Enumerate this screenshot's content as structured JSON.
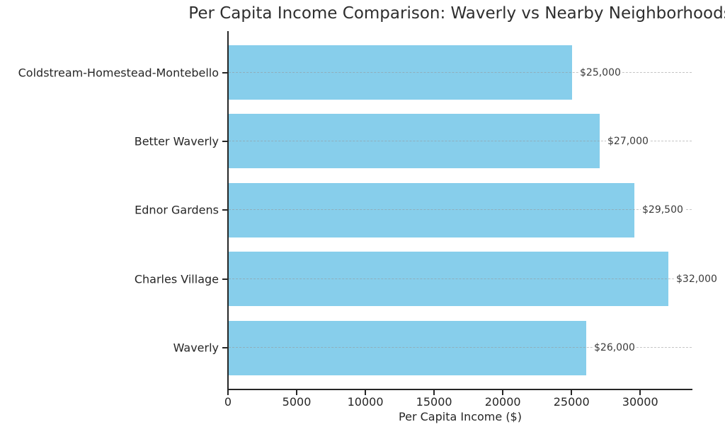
{
  "chart_data": {
    "type": "bar",
    "orientation": "horizontal",
    "title": "Per Capita Income Comparison: Waverly vs Nearby Neighborhoods",
    "xlabel": "Per Capita Income ($)",
    "ylabel": "",
    "categories": [
      "Coldstream-Homestead-Montebello",
      "Better Waverly",
      "Ednor Gardens",
      "Charles Village",
      "Waverly"
    ],
    "values": [
      25000,
      27000,
      29500,
      32000,
      26000
    ],
    "value_labels": [
      "$25,000",
      "$27,000",
      "$29,500",
      "$32,000",
      "$26,000"
    ],
    "xlim": [
      0,
      33750
    ],
    "xticks": [
      0,
      5000,
      10000,
      15000,
      20000,
      25000,
      30000
    ],
    "xtick_labels": [
      "0",
      "5000",
      "10000",
      "15000",
      "20000",
      "25000",
      "30000"
    ],
    "grid": "horizontal-dashed-at-category-centers",
    "legend": "none",
    "bar_color": "#87CEEB",
    "grid_color": "#969696",
    "text_color": "#262626",
    "spine_color": "#262626",
    "background_color": "#ffffff"
  }
}
